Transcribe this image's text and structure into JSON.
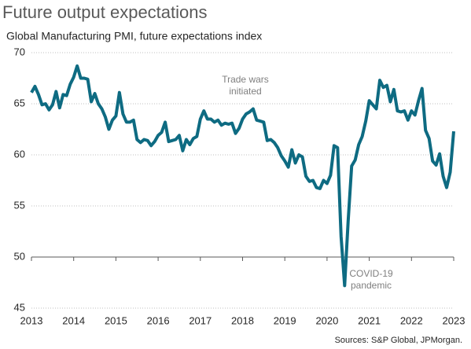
{
  "chart_data": {
    "type": "line",
    "title": "Future output expectations",
    "subtitle": "Global Manufacturing PMI, future expectations index",
    "source": "Sources: S&P Global, JPMorgan.",
    "annotations": [
      {
        "lines": [
          "Trade wars",
          "initiated"
        ]
      },
      {
        "lines": [
          "COVID-19",
          "pandemic"
        ]
      }
    ],
    "color": "#0e6b82",
    "grid": true,
    "x_axis_at": 50,
    "xlim": [
      2013,
      2023
    ],
    "xticks": [
      2013,
      2014,
      2015,
      2016,
      2017,
      2018,
      2019,
      2020,
      2021,
      2022,
      2023
    ],
    "ylim": [
      45,
      70
    ],
    "yticks": [
      45,
      50,
      55,
      60,
      65,
      70
    ],
    "x": [
      2013,
      2013.083,
      2013.167,
      2013.25,
      2013.333,
      2013.417,
      2013.5,
      2013.583,
      2013.667,
      2013.75,
      2013.833,
      2013.917,
      2014,
      2014.083,
      2014.167,
      2014.25,
      2014.333,
      2014.417,
      2014.5,
      2014.583,
      2014.667,
      2014.75,
      2014.833,
      2014.917,
      2015,
      2015.083,
      2015.167,
      2015.25,
      2015.333,
      2015.417,
      2015.5,
      2015.583,
      2015.667,
      2015.75,
      2015.833,
      2015.917,
      2016,
      2016.083,
      2016.167,
      2016.25,
      2016.333,
      2016.417,
      2016.5,
      2016.583,
      2016.667,
      2016.75,
      2016.833,
      2016.917,
      2017,
      2017.083,
      2017.167,
      2017.25,
      2017.333,
      2017.417,
      2017.5,
      2017.583,
      2017.667,
      2017.75,
      2017.833,
      2017.917,
      2018,
      2018.083,
      2018.167,
      2018.25,
      2018.333,
      2018.417,
      2018.5,
      2018.583,
      2018.667,
      2018.75,
      2018.833,
      2018.917,
      2019,
      2019.083,
      2019.167,
      2019.25,
      2019.333,
      2019.417,
      2019.5,
      2019.583,
      2019.667,
      2019.75,
      2019.833,
      2019.917,
      2020,
      2020.083,
      2020.167,
      2020.25,
      2020.333,
      2020.417,
      2020.5,
      2020.583,
      2020.667,
      2020.75,
      2020.833,
      2020.917,
      2021,
      2021.083,
      2021.167,
      2021.25,
      2021.333,
      2021.417,
      2021.5,
      2021.583,
      2021.667,
      2021.75,
      2021.833,
      2021.917,
      2022,
      2022.083,
      2022.167,
      2022.25,
      2022.333,
      2022.417,
      2022.5,
      2022.583,
      2022.667,
      2022.75,
      2022.833,
      2022.917,
      2023
    ],
    "values": [
      66.1,
      66.7,
      65.9,
      64.9,
      65.0,
      64.4,
      64.9,
      66.2,
      64.6,
      65.9,
      65.8,
      66.9,
      67.6,
      68.7,
      67.5,
      67.5,
      67.4,
      65.2,
      66.0,
      65.0,
      64.5,
      63.7,
      62.5,
      63.4,
      63.8,
      66.1,
      64.0,
      63.2,
      63.2,
      63.4,
      61.5,
      61.2,
      61.5,
      61.4,
      60.9,
      61.3,
      61.9,
      62.2,
      63.2,
      61.3,
      61.4,
      61.5,
      61.9,
      60.4,
      61.5,
      61.0,
      61.6,
      61.8,
      63.5,
      64.3,
      63.5,
      63.5,
      63.2,
      63.4,
      62.9,
      63.1,
      63.0,
      63.1,
      62.1,
      62.6,
      63.5,
      64.0,
      64.2,
      64.5,
      63.4,
      63.3,
      63.2,
      61.4,
      61.5,
      61.2,
      60.7,
      59.9,
      59.4,
      58.8,
      60.5,
      59.2,
      60.0,
      59.8,
      57.9,
      57.4,
      57.5,
      56.8,
      56.7,
      57.5,
      57.2,
      58.0,
      60.9,
      60.7,
      52.0,
      47.2,
      53.5,
      58.9,
      59.5,
      61.0,
      61.8,
      63.3,
      65.3,
      64.9,
      64.5,
      67.3,
      66.6,
      66.8,
      65.2,
      66.4,
      64.3,
      64.2,
      64.3,
      63.4,
      64.3,
      63.9,
      65.3,
      66.5,
      62.4,
      61.6,
      59.4,
      59.0,
      60.1,
      57.9,
      56.8,
      58.3,
      62.3
    ]
  }
}
